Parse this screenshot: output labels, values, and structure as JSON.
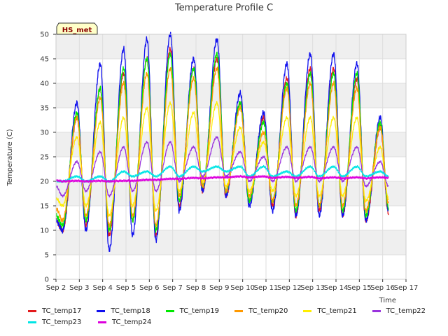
{
  "chart_data": {
    "type": "line",
    "title": "Temperature Profile C",
    "xlabel": "Time",
    "ylabel": "Temperature (C)",
    "badge": "HS_met",
    "xlim": [
      2,
      17
    ],
    "ylim": [
      0,
      50
    ],
    "x_ticks": [
      2,
      3,
      4,
      5,
      6,
      7,
      8,
      9,
      10,
      11,
      12,
      13,
      14,
      15,
      16,
      17
    ],
    "x_tick_labels": [
      "Sep 2",
      "Sep 3",
      "Sep 4",
      "Sep 5",
      "Sep 6",
      "Sep 7",
      "Sep 8",
      "Sep 9",
      "Sep 10",
      "Sep 11",
      "Sep 12",
      "Sep 13",
      "Sep 14",
      "Sep 15",
      "Sep 16",
      "Sep 17"
    ],
    "y_ticks": [
      0,
      5,
      10,
      15,
      20,
      25,
      30,
      35,
      40,
      45,
      50
    ],
    "y_tick_labels": [
      "0",
      "5",
      "10",
      "15",
      "20",
      "25",
      "30",
      "35",
      "40",
      "45",
      "50"
    ],
    "x_data_range": [
      2.0,
      16.25
    ],
    "daily_peak_day": [
      2.9,
      3.9,
      4.9,
      5.9,
      6.9,
      7.9,
      8.9,
      9.9,
      10.9,
      11.9,
      12.9,
      13.9,
      14.9,
      15.9
    ],
    "series": [
      {
        "name": "TC_temp17",
        "color": "#e31a1c",
        "start": 12,
        "end": 13.5,
        "daily_min": [
          10,
          11,
          9,
          12,
          9,
          15,
          18,
          17,
          16,
          15,
          13,
          14,
          13,
          12
        ],
        "daily_max": [
          33,
          39,
          42,
          45,
          47,
          43,
          45,
          36,
          33,
          41,
          43,
          43,
          41,
          31
        ]
      },
      {
        "name": "TC_temp18",
        "color": "#1010ee",
        "start": 12,
        "end": 14,
        "daily_min": [
          10,
          10,
          6,
          9,
          8,
          14,
          18,
          17,
          15,
          14,
          13,
          13,
          13,
          12
        ],
        "daily_max": [
          36,
          44,
          47,
          49,
          50,
          45,
          49,
          38,
          34,
          44,
          46,
          46,
          44,
          33
        ]
      },
      {
        "name": "TC_temp19",
        "color": "#00e800",
        "start": 13,
        "end": 14.5,
        "daily_min": [
          11,
          12,
          10,
          12,
          10,
          16,
          19,
          18,
          16,
          16,
          14,
          15,
          14,
          13
        ],
        "daily_max": [
          34,
          39,
          43,
          45,
          46,
          43,
          46,
          36,
          32,
          40,
          42,
          42,
          42,
          32
        ]
      },
      {
        "name": "TC_temp20",
        "color": "#ff9900",
        "start": 14.5,
        "end": 15.5,
        "daily_min": [
          12,
          13,
          11,
          13,
          11,
          17,
          19,
          18,
          17,
          16,
          15,
          15,
          15,
          14
        ],
        "daily_max": [
          33,
          37,
          40,
          42,
          43,
          41,
          43,
          35,
          30,
          39,
          40,
          40,
          39,
          31
        ]
      },
      {
        "name": "TC_temp21",
        "color": "#ffee00",
        "start": 16.5,
        "end": 16.5,
        "daily_min": [
          15,
          15,
          13,
          15,
          14,
          18,
          20,
          19,
          18,
          18,
          17,
          17,
          17,
          16
        ],
        "daily_max": [
          29,
          32,
          33,
          35,
          36,
          34,
          36,
          31,
          28,
          33,
          33,
          33,
          33,
          27
        ]
      },
      {
        "name": "TC_temp22",
        "color": "#9933dd",
        "start": 19,
        "end": 19,
        "daily_min": [
          17,
          18,
          17,
          18,
          18,
          20,
          21,
          21,
          20,
          20,
          20,
          20,
          20,
          19
        ],
        "daily_max": [
          24,
          26,
          27,
          28,
          28,
          27,
          29,
          26,
          25,
          27,
          27,
          27,
          27,
          24
        ]
      },
      {
        "name": "TC_temp23",
        "color": "#00e5e5",
        "start": 20,
        "end": 21,
        "daily_min": [
          20,
          20,
          20,
          21,
          21,
          21,
          22,
          22,
          21,
          21,
          21,
          21,
          21,
          21
        ],
        "daily_max": [
          21,
          21,
          22,
          22,
          23,
          23,
          23,
          23,
          23,
          22,
          23,
          23,
          23,
          22
        ]
      },
      {
        "name": "TC_temp24",
        "color": "#dd00dd",
        "start": 20.2,
        "end": 20.7,
        "daily_min": [
          20,
          20,
          20,
          20.1,
          20.3,
          20.5,
          20.6,
          20.8,
          20.8,
          20.7,
          20.7,
          20.6,
          20.6,
          20.6
        ],
        "daily_max": [
          20.1,
          20.1,
          20.1,
          20.3,
          20.5,
          20.7,
          20.8,
          21.0,
          21.0,
          20.9,
          20.9,
          20.8,
          20.8,
          20.8
        ]
      }
    ]
  }
}
